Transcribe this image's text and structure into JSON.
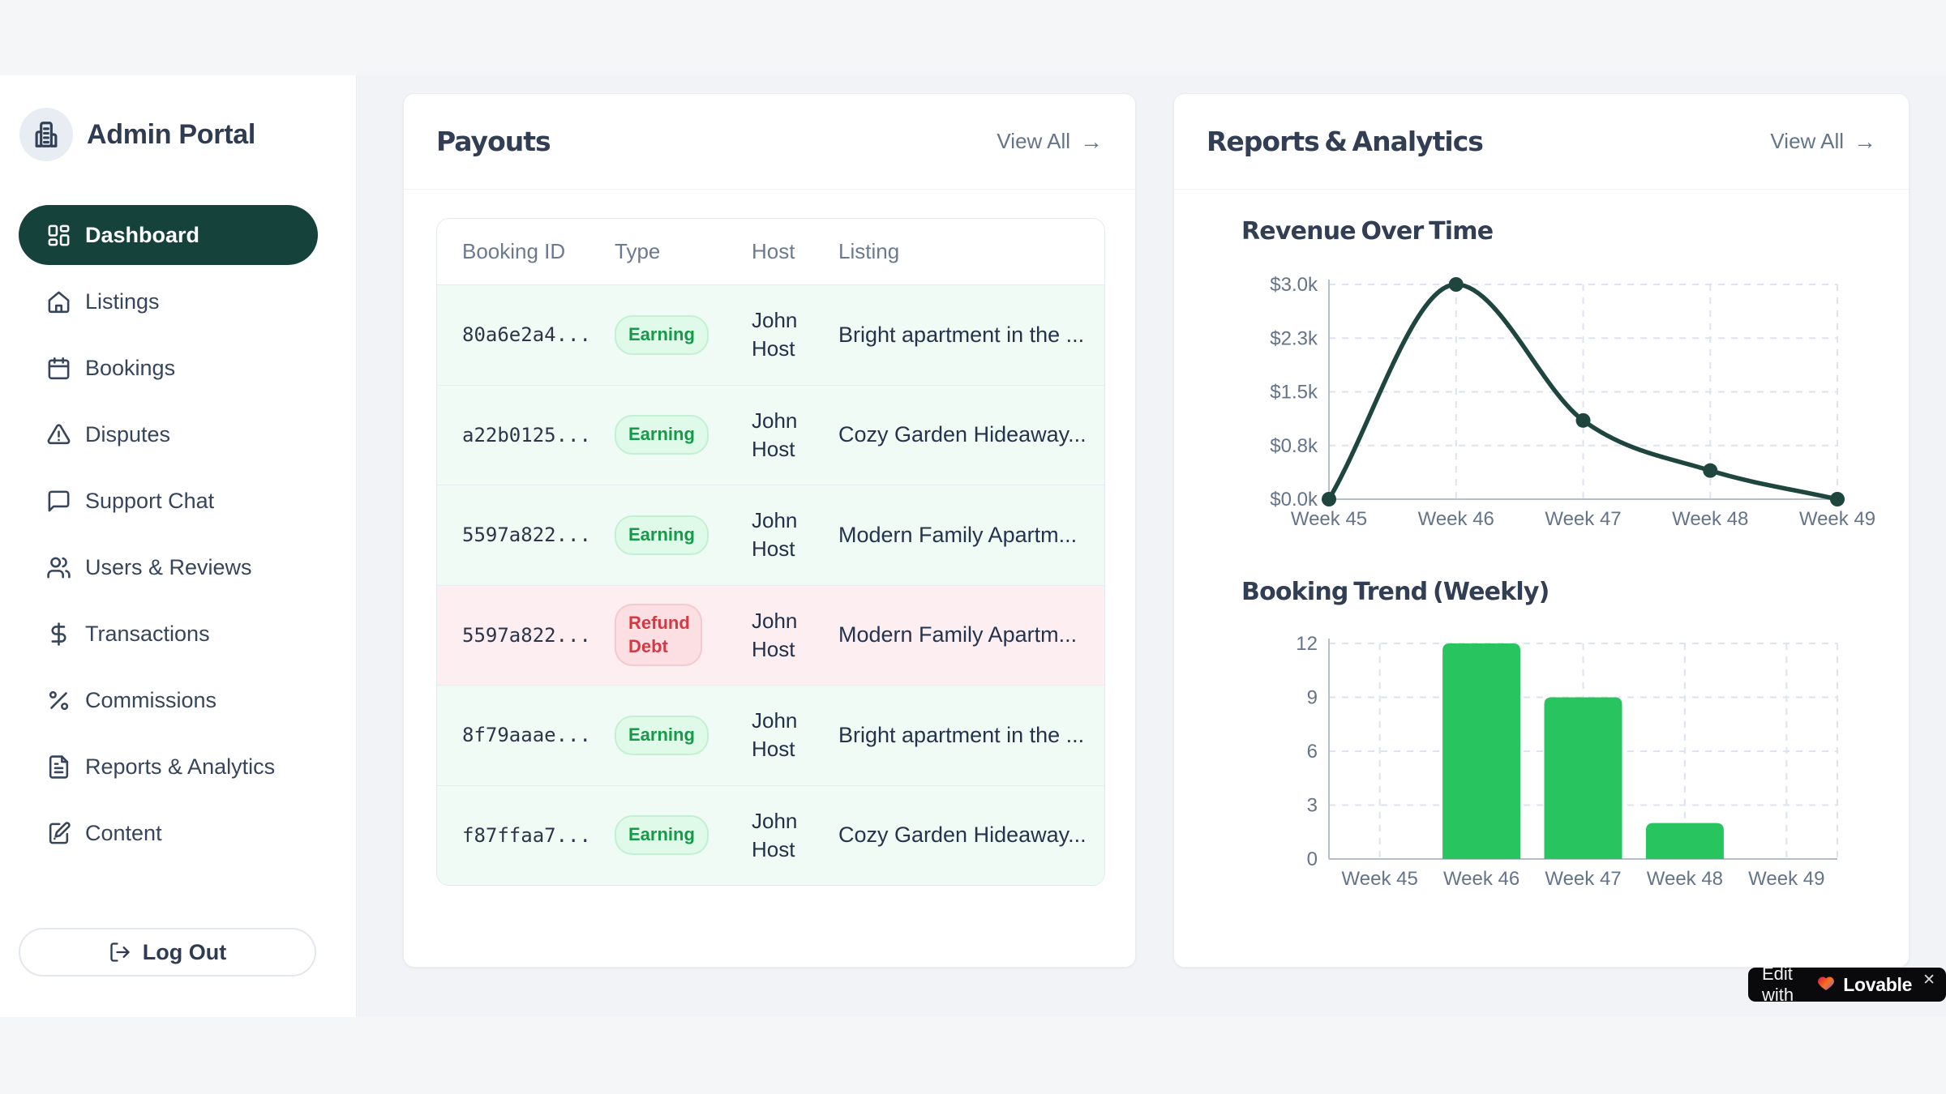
{
  "app": {
    "title": "Admin Portal"
  },
  "sidebar": {
    "items": [
      {
        "label": "Dashboard",
        "icon": "dashboard-icon",
        "active": true
      },
      {
        "label": "Listings",
        "icon": "home-icon",
        "active": false
      },
      {
        "label": "Bookings",
        "icon": "calendar-icon",
        "active": false
      },
      {
        "label": "Disputes",
        "icon": "alert-triangle-icon",
        "active": false
      },
      {
        "label": "Support Chat",
        "icon": "message-square-icon",
        "active": false
      },
      {
        "label": "Users & Reviews",
        "icon": "users-icon",
        "active": false
      },
      {
        "label": "Transactions",
        "icon": "dollar-icon",
        "active": false
      },
      {
        "label": "Commissions",
        "icon": "percent-icon",
        "active": false
      },
      {
        "label": "Reports & Analytics",
        "icon": "file-text-icon",
        "active": false
      },
      {
        "label": "Content",
        "icon": "edit-doc-icon",
        "active": false
      }
    ],
    "logout_label": "Log Out",
    "brand_icon": "building-icon"
  },
  "payouts": {
    "title": "Payouts",
    "view_all_label": "View All",
    "columns": [
      "Booking ID",
      "Type",
      "Host",
      "Listing"
    ],
    "rows": [
      {
        "booking_id": "80a6e2a4...",
        "type": "Earning",
        "type_kind": "earning",
        "host": "John Host",
        "listing": "Bright apartment in the ..."
      },
      {
        "booking_id": "a22b0125...",
        "type": "Earning",
        "type_kind": "earning",
        "host": "John Host",
        "listing": "Cozy Garden Hideaway..."
      },
      {
        "booking_id": "5597a822...",
        "type": "Earning",
        "type_kind": "earning",
        "host": "John Host",
        "listing": "Modern Family Apartm..."
      },
      {
        "booking_id": "5597a822...",
        "type": "Refund Debt",
        "type_kind": "refund",
        "host": "John Host",
        "listing": "Modern Family Apartm..."
      },
      {
        "booking_id": "8f79aaae...",
        "type": "Earning",
        "type_kind": "earning",
        "host": "John Host",
        "listing": "Bright apartment in the ..."
      },
      {
        "booking_id": "f87ffaa7...",
        "type": "Earning",
        "type_kind": "earning",
        "host": "John Host",
        "listing": "Cozy Garden Hideaway..."
      }
    ]
  },
  "reports": {
    "title": "Reports & Analytics",
    "view_all_label": "View All"
  },
  "chart_data": [
    {
      "type": "line",
      "title": "Revenue Over Time",
      "categories": [
        "Week 45",
        "Week 46",
        "Week 47",
        "Week 48",
        "Week 49"
      ],
      "values": [
        0,
        3000,
        1100,
        400,
        0
      ],
      "y_ticks": [
        "$0.0k",
        "$0.8k",
        "$1.5k",
        "$2.3k",
        "$3.0k"
      ],
      "y_tick_values": [
        0,
        750,
        1500,
        2250,
        3000
      ],
      "ylim": [
        0,
        3000
      ],
      "grid": true,
      "legend": "none",
      "line_color": "#1e463f",
      "grid_color": "#dde4ef",
      "axis_color": "#b7bec9",
      "label_color": "#64748b"
    },
    {
      "type": "bar",
      "title": "Booking Trend (Weekly)",
      "categories": [
        "Week 45",
        "Week 46",
        "Week 47",
        "Week 48",
        "Week 49"
      ],
      "values": [
        0,
        12,
        9,
        2,
        0
      ],
      "y_ticks": [
        "0",
        "3",
        "6",
        "9",
        "12"
      ],
      "y_tick_values": [
        0,
        3,
        6,
        9,
        12
      ],
      "ylim": [
        0,
        12
      ],
      "grid": true,
      "legend": "none",
      "bar_color": "#27c45f",
      "grid_color": "#dde4ef",
      "axis_color": "#b7bec9",
      "label_color": "#64748b"
    }
  ],
  "lovable_badge": {
    "prefix": "Edit with",
    "brand": "Lovable",
    "close": "✕"
  },
  "colors": {
    "active_nav": "#15423a",
    "page_bg": "#f1f3f6",
    "earning_badge_bg": "#e0faea",
    "earning_badge_text": "#169a49",
    "refund_badge_bg": "#fbdfe3",
    "refund_badge_text": "#d53a44",
    "earning_row_bg": "#effbf4",
    "refund_row_bg": "#fdeff1"
  }
}
